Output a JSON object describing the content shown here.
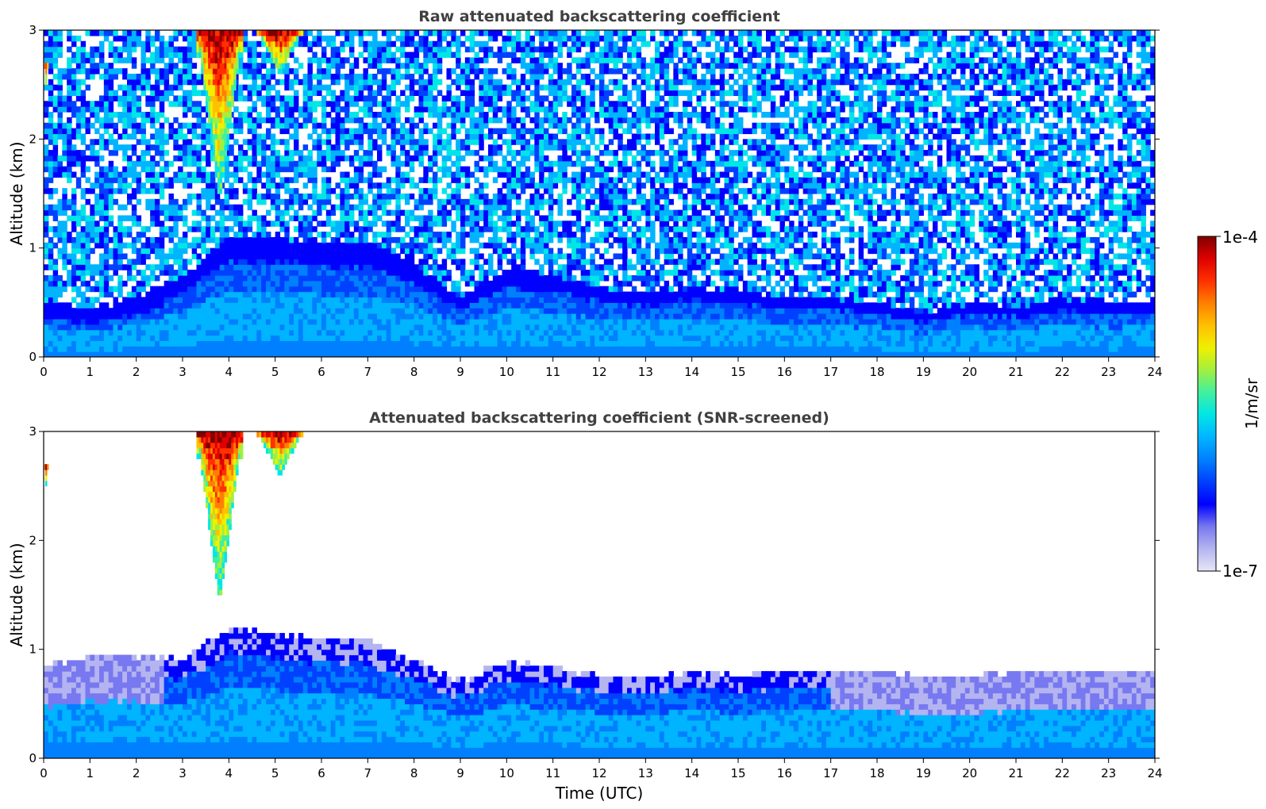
{
  "chart_data": [
    {
      "type": "heatmap",
      "title": "Raw attenuated backscattering coefficient",
      "xlabel": "",
      "ylabel": "Altitude (km)",
      "xlim": [
        0,
        24
      ],
      "ylim": [
        0,
        3
      ],
      "x_ticks": [
        "0",
        "1",
        "2",
        "3",
        "4",
        "5",
        "6",
        "7",
        "8",
        "9",
        "10",
        "11",
        "12",
        "13",
        "14",
        "15",
        "16",
        "17",
        "18",
        "19",
        "20",
        "21",
        "22",
        "23",
        "24"
      ],
      "y_ticks": [
        "0",
        "1",
        "2",
        "3"
      ],
      "screened": false,
      "boundary_layer_top_km": {
        "time_utc": [
          0,
          1,
          2,
          3,
          4,
          5,
          6,
          7,
          8,
          9,
          10,
          11,
          12,
          13,
          14,
          15,
          16,
          17,
          18,
          19,
          20,
          21,
          22,
          23,
          24
        ],
        "altitude_km": [
          0.5,
          0.45,
          0.55,
          0.75,
          1.1,
          1.1,
          1.05,
          1.05,
          0.85,
          0.55,
          0.8,
          0.75,
          0.65,
          0.6,
          0.65,
          0.6,
          0.55,
          0.55,
          0.5,
          0.4,
          0.5,
          0.45,
          0.55,
          0.5,
          0.5
        ]
      },
      "clouds": [
        {
          "time_utc": [
            3.3,
            4.3
          ],
          "altitude_km": [
            1.4,
            3.0
          ]
        },
        {
          "time_utc": [
            4.6,
            5.6
          ],
          "altitude_km": [
            2.6,
            3.0
          ]
        },
        {
          "time_utc": [
            0.0,
            0.1
          ],
          "altitude_km": [
            2.5,
            2.7
          ]
        }
      ]
    },
    {
      "type": "heatmap",
      "title": "Attenuated backscattering coefficient (SNR-screened)",
      "xlabel": "Time (UTC)",
      "ylabel": "Altitude (km)",
      "xlim": [
        0,
        24
      ],
      "ylim": [
        0,
        3
      ],
      "x_ticks": [
        "0",
        "1",
        "2",
        "3",
        "4",
        "5",
        "6",
        "7",
        "8",
        "9",
        "10",
        "11",
        "12",
        "13",
        "14",
        "15",
        "16",
        "17",
        "18",
        "19",
        "20",
        "21",
        "22",
        "23",
        "24"
      ],
      "y_ticks": [
        "0",
        "1",
        "2",
        "3"
      ],
      "screened": true,
      "boundary_layer_top_km": {
        "time_utc": [
          0,
          1,
          2,
          3,
          4,
          5,
          6,
          7,
          8,
          9,
          10,
          11,
          12,
          13,
          14,
          15,
          16,
          17,
          18,
          19,
          20,
          21,
          22,
          23,
          24
        ],
        "altitude_km": [
          0.85,
          0.95,
          0.95,
          0.9,
          1.2,
          1.15,
          1.1,
          1.1,
          0.9,
          0.7,
          0.9,
          0.85,
          0.75,
          0.75,
          0.8,
          0.75,
          0.8,
          0.8,
          0.8,
          0.75,
          0.75,
          0.8,
          0.8,
          0.8,
          0.8
        ]
      },
      "clouds": [
        {
          "time_utc": [
            3.3,
            4.3
          ],
          "altitude_km": [
            1.4,
            3.0
          ]
        },
        {
          "time_utc": [
            4.6,
            5.6
          ],
          "altitude_km": [
            2.6,
            3.0
          ]
        },
        {
          "time_utc": [
            0.0,
            0.1
          ],
          "altitude_km": [
            2.5,
            2.7
          ]
        }
      ]
    }
  ],
  "colorbar": {
    "min_label": "1e-7",
    "max_label": "1e-4",
    "unit": "1/m/sr",
    "colors": [
      "#e6e6f8",
      "#b4b4f0",
      "#7878f0",
      "#0000ff",
      "#0040ff",
      "#0080ff",
      "#00b4ff",
      "#00e6e6",
      "#40f0a0",
      "#a0f040",
      "#f0f000",
      "#ffc000",
      "#ff8000",
      "#ff3000",
      "#e00000",
      "#800000"
    ]
  }
}
